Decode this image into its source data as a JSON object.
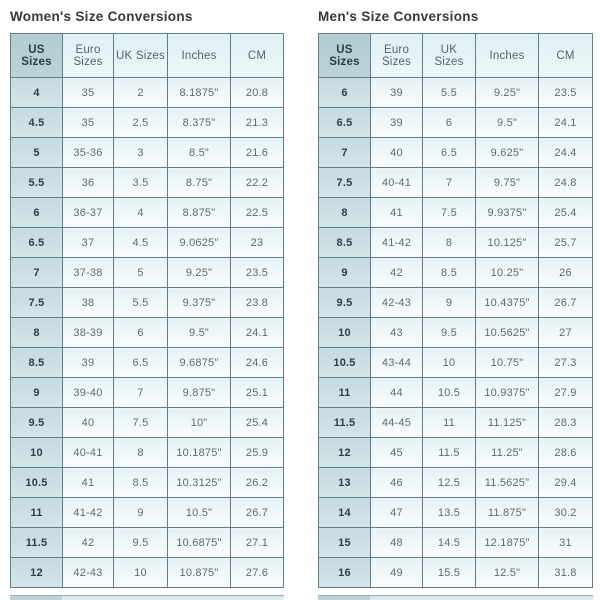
{
  "colors": {
    "grid_border": "#5f7e8b",
    "outer_border": "#4d6a76",
    "header_first_bg": "#b6cdd6",
    "header_bg": "#e4f2f5",
    "row_label_bg": "#cbdee4",
    "data_cell_bg": "#eef7f9",
    "title_text": "#383838",
    "cell_text": "#5c6c73",
    "bold_cell_text": "#2f3e47"
  },
  "tables": [
    {
      "title": "Women's Size Conversions",
      "headers": [
        "US Sizes",
        "Euro Sizes",
        "UK Sizes",
        "Inches",
        "CM"
      ],
      "rows": [
        [
          "4",
          "35",
          "2",
          "8.1875\"",
          "20.8"
        ],
        [
          "4.5",
          "35",
          "2.5",
          "8.375\"",
          "21.3"
        ],
        [
          "5",
          "35-36",
          "3",
          "8.5\"",
          "21.6"
        ],
        [
          "5.5",
          "36",
          "3.5",
          "8.75\"",
          "22.2"
        ],
        [
          "6",
          "36-37",
          "4",
          "8.875\"",
          "22.5"
        ],
        [
          "6.5",
          "37",
          "4.5",
          "9.0625\"",
          "23"
        ],
        [
          "7",
          "37-38",
          "5",
          "9.25\"",
          "23.5"
        ],
        [
          "7.5",
          "38",
          "5.5",
          "9.375\"",
          "23.8"
        ],
        [
          "8",
          "38-39",
          "6",
          "9.5\"",
          "24.1"
        ],
        [
          "8.5",
          "39",
          "6.5",
          "9.6875\"",
          "24.6"
        ],
        [
          "9",
          "39-40",
          "7",
          "9.875\"",
          "25.1"
        ],
        [
          "9.5",
          "40",
          "7.5",
          "10\"",
          "25.4"
        ],
        [
          "10",
          "40-41",
          "8",
          "10.1875\"",
          "25.9"
        ],
        [
          "10.5",
          "41",
          "8.5",
          "10.3125\"",
          "26.2"
        ],
        [
          "11",
          "41-42",
          "9",
          "10.5\"",
          "26.7"
        ],
        [
          "11.5",
          "42",
          "9.5",
          "10.6875\"",
          "27.1"
        ],
        [
          "12",
          "42-43",
          "10",
          "10.875\"",
          "27.6"
        ]
      ]
    },
    {
      "title": "Men's Size Conversions",
      "headers": [
        "US Sizes",
        "Euro Sizes",
        "UK Sizes",
        "Inches",
        "CM"
      ],
      "rows": [
        [
          "6",
          "39",
          "5.5",
          "9.25\"",
          "23.5"
        ],
        [
          "6.5",
          "39",
          "6",
          "9.5\"",
          "24.1"
        ],
        [
          "7",
          "40",
          "6.5",
          "9.625\"",
          "24.4"
        ],
        [
          "7.5",
          "40-41",
          "7",
          "9.75\"",
          "24.8"
        ],
        [
          "8",
          "41",
          "7.5",
          "9.9375\"",
          "25.4"
        ],
        [
          "8.5",
          "41-42",
          "8",
          "10.125\"",
          "25.7"
        ],
        [
          "9",
          "42",
          "8.5",
          "10.25\"",
          "26"
        ],
        [
          "9.5",
          "42-43",
          "9",
          "10.4375\"",
          "26.7"
        ],
        [
          "10",
          "43",
          "9.5",
          "10.5625\"",
          "27"
        ],
        [
          "10.5",
          "43-44",
          "10",
          "10.75\"",
          "27.3"
        ],
        [
          "11",
          "44",
          "10.5",
          "10.9375\"",
          "27.9"
        ],
        [
          "11.5",
          "44-45",
          "11",
          "11.125\"",
          "28.3"
        ],
        [
          "12",
          "45",
          "11.5",
          "11.25\"",
          "28.6"
        ],
        [
          "13",
          "46",
          "12.5",
          "11.5625\"",
          "29.4"
        ],
        [
          "14",
          "47",
          "13.5",
          "11.875\"",
          "30.2"
        ],
        [
          "15",
          "48",
          "14.5",
          "12.1875\"",
          "31"
        ],
        [
          "16",
          "49",
          "15.5",
          "12.5\"",
          "31.8"
        ]
      ]
    }
  ]
}
